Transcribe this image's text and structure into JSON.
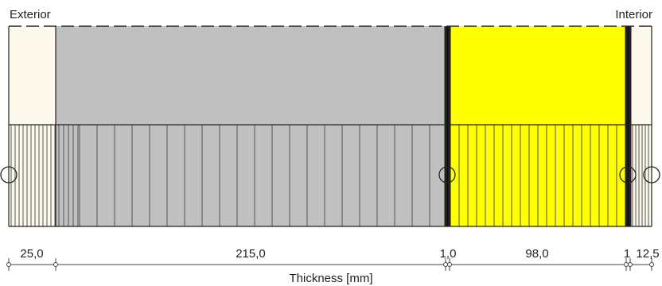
{
  "labels": {
    "exterior": "Exterior",
    "interior": "Interior",
    "axis_title": "Thickness [mm]"
  },
  "layers": [
    {
      "thickness": 25.0,
      "label": "25,0",
      "color": "#fdf8ec"
    },
    {
      "thickness": 215.0,
      "label": "215,0",
      "color": "#c0c0c0"
    },
    {
      "thickness": 1.0,
      "label": "1,0",
      "color": "#111111"
    },
    {
      "thickness": 98.0,
      "label": "98,0",
      "color": "#ffff00"
    },
    {
      "thickness": 1.0,
      "label": "1",
      "color": "#111111"
    },
    {
      "thickness": 12.5,
      "label": "12,5",
      "color": "#fdf8ec"
    }
  ]
}
